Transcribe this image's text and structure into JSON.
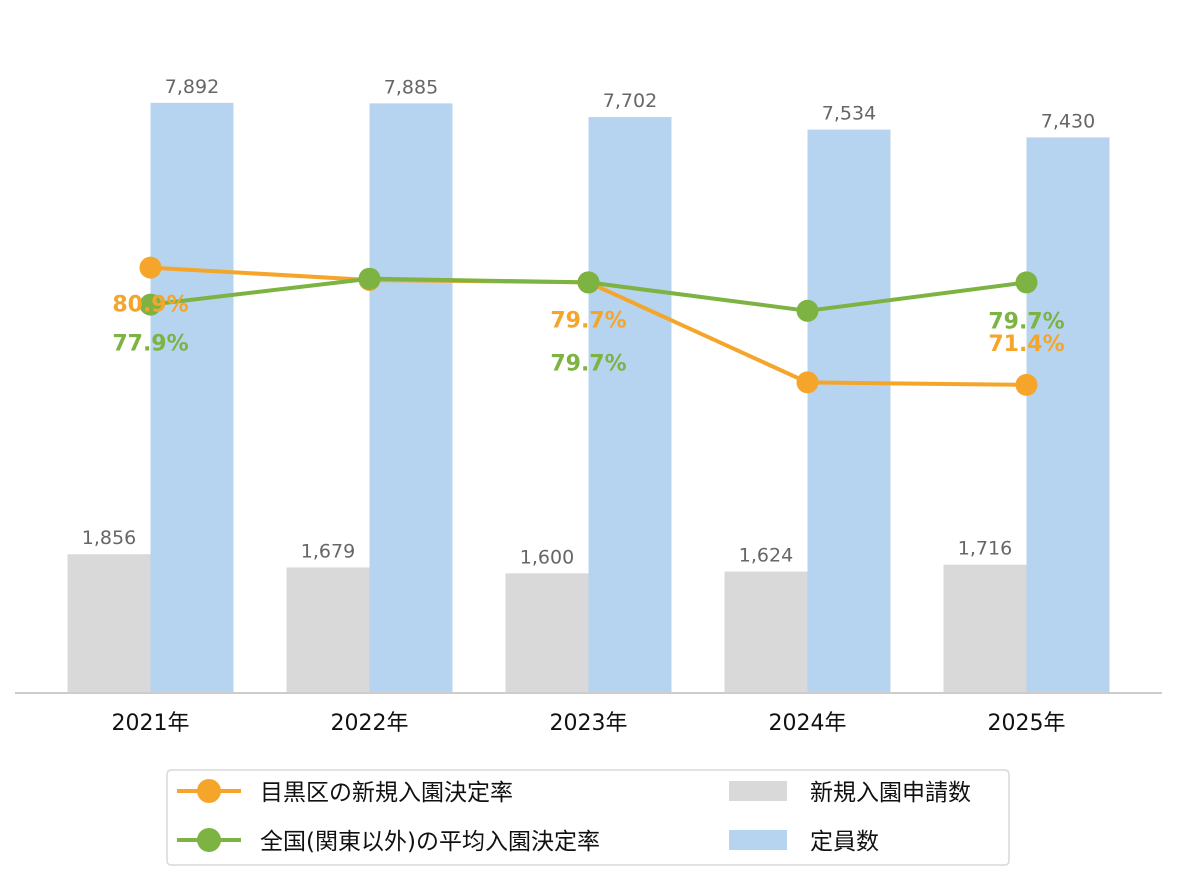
{
  "chart_data": {
    "type": "bar",
    "categories": [
      "2021年",
      "2022年",
      "2023年",
      "2024年",
      "2025年"
    ],
    "series": [
      {
        "name": "新規入園申請数",
        "kind": "bar",
        "color": "#d9d9d9",
        "values": [
          1856,
          1679,
          1600,
          1624,
          1716
        ],
        "labels": [
          "1,856",
          "1,679",
          "1,600",
          "1,624",
          "1,716"
        ]
      },
      {
        "name": "定員数",
        "kind": "bar",
        "color": "#b6d4ef",
        "values": [
          7892,
          7885,
          7702,
          7534,
          7430
        ],
        "labels": [
          "7,892",
          "7,885",
          "7,702",
          "7,534",
          "7,430"
        ]
      },
      {
        "name": "目黒区の新規入園決定率",
        "kind": "line",
        "color": "#f4a52a",
        "values": [
          80.9,
          79.9,
          79.7,
          71.6,
          71.4
        ],
        "labels": [
          "80.9%",
          "",
          "79.7%",
          "",
          "71.4%"
        ]
      },
      {
        "name": "全国(関東以外)の平均入園決定率",
        "kind": "line",
        "color": "#7cb342",
        "values": [
          77.9,
          80.0,
          79.7,
          77.4,
          79.7
        ],
        "labels": [
          "77.9%",
          "",
          "79.7%",
          "",
          "79.7%"
        ]
      }
    ],
    "bar_axis_range": [
      0,
      9000
    ],
    "rate_axis_range": [
      50,
      85
    ],
    "grid": false,
    "legend_position": "bottom"
  }
}
